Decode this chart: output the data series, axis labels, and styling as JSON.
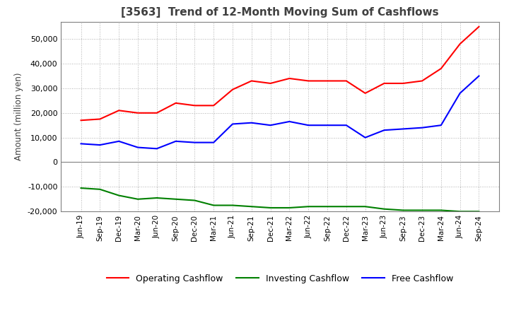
{
  "title": "[3563]  Trend of 12-Month Moving Sum of Cashflows",
  "ylabel": "Amount (million yen)",
  "ylim": [
    -20000,
    57000
  ],
  "yticks": [
    -20000,
    -10000,
    0,
    10000,
    20000,
    30000,
    40000,
    50000
  ],
  "x_labels": [
    "Jun-19",
    "Sep-19",
    "Dec-19",
    "Mar-20",
    "Jun-20",
    "Sep-20",
    "Dec-20",
    "Mar-21",
    "Jun-21",
    "Sep-21",
    "Dec-21",
    "Mar-22",
    "Jun-22",
    "Sep-22",
    "Dec-22",
    "Mar-23",
    "Jun-23",
    "Sep-23",
    "Dec-23",
    "Mar-24",
    "Jun-24",
    "Sep-24"
  ],
  "operating": [
    17000,
    17500,
    21000,
    20000,
    20000,
    24000,
    23000,
    23000,
    29500,
    33000,
    32000,
    34000,
    33000,
    33000,
    33000,
    28000,
    32000,
    32000,
    33000,
    38000,
    48000,
    55000
  ],
  "investing": [
    -10500,
    -11000,
    -13500,
    -15000,
    -14500,
    -15000,
    -15500,
    -17500,
    -17500,
    -18000,
    -18500,
    -18500,
    -18000,
    -18000,
    -18000,
    -18000,
    -19000,
    -19500,
    -19500,
    -19500,
    -20000,
    -20000
  ],
  "free": [
    7500,
    7000,
    8500,
    6000,
    5500,
    8500,
    8000,
    8000,
    15500,
    16000,
    15000,
    16500,
    15000,
    15000,
    15000,
    10000,
    13000,
    13500,
    14000,
    15000,
    28000,
    35000
  ],
  "op_color": "#ff0000",
  "inv_color": "#008000",
  "free_color": "#0000ff",
  "bg_color": "#ffffff",
  "plot_bg_color": "#ffffff",
  "grid_color": "#b0b0b0",
  "title_color": "#404040",
  "legend_labels": [
    "Operating Cashflow",
    "Investing Cashflow",
    "Free Cashflow"
  ]
}
